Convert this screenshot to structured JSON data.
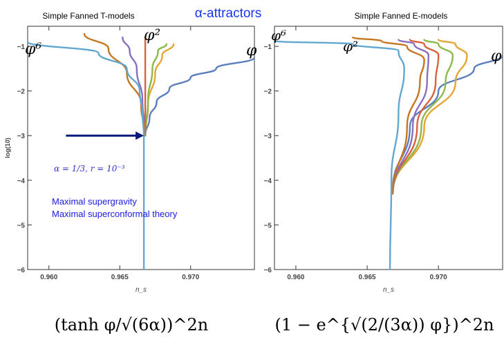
{
  "header": {
    "title": "α-attractors",
    "title_color": "#1a33e8"
  },
  "left_panel": {
    "caption": "Simple Fanned T-models",
    "label_phi6": "φ⁶",
    "label_phi2": "φ²",
    "arrow_color": "#0a1a7a",
    "annotation": "α = 1/3,   r = 10⁻³",
    "notes": [
      "Maximal supergravity",
      "Maximal superconformal theory"
    ],
    "notes_color": "#1a1ae0",
    "formula": "(tanh φ/√(6α))^2n"
  },
  "right_panel": {
    "caption": "Simple Fanned E-models",
    "label_phi_left": "φ",
    "label_phi6": "φ⁶",
    "label_phi2": "φ²",
    "label_phi_right": "φ",
    "formula": "(1 − e^{√(2/(3α)) φ})^2n"
  },
  "series_colors": [
    "#5b7fbd",
    "#e6a532",
    "#8db84a",
    "#d9623c",
    "#8a6fbf",
    "#c5761e",
    "#62a7cf"
  ],
  "chart_data": [
    {
      "type": "line",
      "xlabel": "n_s",
      "ylabel": "log(10)",
      "xlim": [
        0.9585,
        0.9745
      ],
      "ylim": [
        -6,
        -0.55
      ],
      "xticks": [
        0.96,
        0.965,
        0.97
      ],
      "xtick_labels": [
        "0.960",
        "0.965",
        "0.970"
      ],
      "yticks": [
        -6,
        -5,
        -4,
        -3,
        -2,
        -1
      ],
      "ytick_labels": [
        "−6",
        "−5",
        "−4",
        "−3",
        "−2",
        "−1"
      ],
      "grid": false,
      "series": [
        {
          "x": [
            0.9668,
            0.9671,
            0.9676,
            0.9685,
            0.97,
            0.9718,
            0.9745
          ],
          "y": [
            -3.0,
            -2.6,
            -2.25,
            -1.95,
            -1.7,
            -1.5,
            -1.25
          ]
        },
        {
          "x": [
            0.9668,
            0.967,
            0.9675,
            0.968,
            0.9688
          ],
          "y": [
            -3.0,
            -2.3,
            -1.6,
            -1.2,
            -0.95
          ]
        },
        {
          "x": [
            0.9668,
            0.967,
            0.9673,
            0.9677,
            0.9683
          ],
          "y": [
            -3.0,
            -2.2,
            -1.5,
            -1.1,
            -0.95
          ]
        },
        {
          "x": [
            0.9668,
            0.9668,
            0.9668
          ],
          "y": [
            -3.0,
            -1.5,
            -0.8
          ]
        },
        {
          "x": [
            0.9668,
            0.9666,
            0.9662,
            0.9657,
            0.9652
          ],
          "y": [
            -3.0,
            -2.2,
            -1.5,
            -1.1,
            -0.8
          ]
        },
        {
          "x": [
            0.9668,
            0.9665,
            0.9655,
            0.9642,
            0.9625
          ],
          "y": [
            -3.0,
            -2.3,
            -1.6,
            -1.05,
            -0.72
          ]
        },
        {
          "x": [
            0.9667,
            0.9667,
            0.9667,
            0.9666,
            0.9664,
            0.9655,
            0.9635,
            0.9585
          ],
          "y": [
            -6.0,
            -4.0,
            -3.0,
            -2.5,
            -2.0,
            -1.5,
            -1.15,
            -0.9
          ]
        }
      ]
    },
    {
      "type": "line",
      "xlabel": "n_s",
      "ylabel": "",
      "xlim": [
        0.9585,
        0.9745
      ],
      "ylim": [
        -6,
        -0.55
      ],
      "xticks": [
        0.96,
        0.965,
        0.97
      ],
      "xtick_labels": [
        "0.960",
        "0.965",
        "0.970"
      ],
      "yticks": [
        -6,
        -5,
        -4,
        -3,
        -2,
        -1
      ],
      "ytick_labels": [
        "−6",
        "−5",
        "−4",
        "−3",
        "−2",
        "−1"
      ],
      "grid": false,
      "series": [
        {
          "x": [
            0.9668,
            0.968,
            0.97,
            0.9725,
            0.9745
          ],
          "y": [
            -4.2,
            -2.8,
            -2.0,
            -1.5,
            -1.2
          ]
        },
        {
          "x": [
            0.9668,
            0.969,
            0.9712,
            0.972,
            0.9712,
            0.97
          ],
          "y": [
            -4.3,
            -2.8,
            -1.8,
            -1.2,
            -0.95,
            -0.85
          ]
        },
        {
          "x": [
            0.9668,
            0.9688,
            0.9705,
            0.971,
            0.97,
            0.969
          ],
          "y": [
            -4.3,
            -2.8,
            -1.8,
            -1.2,
            -0.95,
            -0.85
          ]
        },
        {
          "x": [
            0.9668,
            0.9685,
            0.9698,
            0.97,
            0.969,
            0.968
          ],
          "y": [
            -4.3,
            -2.8,
            -1.8,
            -1.2,
            -0.95,
            -0.85
          ]
        },
        {
          "x": [
            0.9668,
            0.9682,
            0.9692,
            0.9693,
            0.9683,
            0.9672
          ],
          "y": [
            -4.3,
            -2.8,
            -1.8,
            -1.2,
            -0.95,
            -0.85
          ]
        },
        {
          "x": [
            0.9668,
            0.9678,
            0.9687,
            0.969,
            0.9678,
            0.966,
            0.964
          ],
          "y": [
            -4.3,
            -2.8,
            -1.8,
            -1.3,
            -1.0,
            -0.88,
            -0.8
          ]
        },
        {
          "x": [
            0.9666,
            0.9667,
            0.9672,
            0.9676,
            0.9672,
            0.964,
            0.9585
          ],
          "y": [
            -6.0,
            -4.0,
            -2.5,
            -1.5,
            -1.1,
            -0.95,
            -0.88
          ]
        }
      ]
    }
  ]
}
